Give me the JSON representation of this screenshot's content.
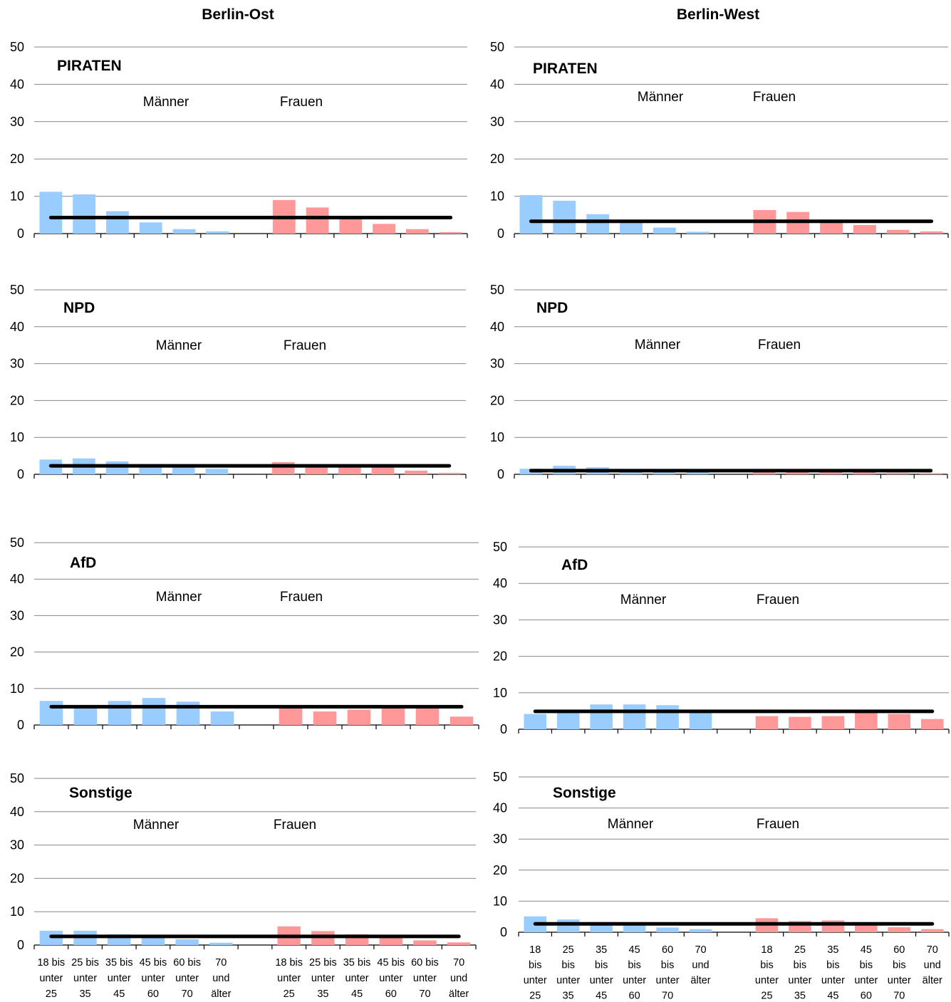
{
  "columns": [
    "Berlin-Ost",
    "Berlin-West"
  ],
  "labels": {
    "men": "Männer",
    "women": "Frauen"
  },
  "colors": {
    "men": "#99ccff",
    "women": "#ff9999",
    "average_line": "#000000"
  },
  "chart_data": [
    {
      "type": "bar",
      "title": "PIRATEN",
      "region": "Berlin-Ost",
      "ylim": [
        0,
        50
      ],
      "yticks": [
        0,
        10,
        20,
        30,
        40,
        50
      ],
      "series": [
        {
          "name": "Männer",
          "values": [
            11.2,
            10.5,
            6.0,
            3.0,
            1.2,
            0.6
          ]
        },
        {
          "name": "Frauen",
          "values": [
            9.0,
            7.0,
            4.0,
            2.6,
            1.2,
            0.4
          ]
        }
      ],
      "average": 4.3
    },
    {
      "type": "bar",
      "title": "PIRATEN",
      "region": "Berlin-West",
      "ylim": [
        0,
        50
      ],
      "yticks": [
        0,
        10,
        20,
        30,
        40,
        50
      ],
      "series": [
        {
          "name": "Männer",
          "values": [
            10.3,
            8.8,
            5.2,
            3.0,
            1.6,
            0.5
          ]
        },
        {
          "name": "Frauen",
          "values": [
            6.3,
            5.8,
            3.5,
            2.3,
            1.0,
            0.6
          ]
        }
      ],
      "average": 3.3
    },
    {
      "type": "bar",
      "title": "NPD",
      "region": "Berlin-Ost",
      "ylim": [
        0,
        50
      ],
      "yticks": [
        0,
        10,
        20,
        30,
        40,
        50
      ],
      "series": [
        {
          "name": "Männer",
          "values": [
            4.0,
            4.3,
            3.5,
            2.8,
            2.0,
            1.5
          ]
        },
        {
          "name": "Frauen",
          "values": [
            3.3,
            2.5,
            2.4,
            2.4,
            1.0,
            0.4
          ]
        }
      ],
      "average": 2.3
    },
    {
      "type": "bar",
      "title": "NPD",
      "region": "Berlin-West",
      "ylim": [
        0,
        50
      ],
      "yticks": [
        0,
        10,
        20,
        30,
        40,
        50
      ],
      "series": [
        {
          "name": "Männer",
          "values": [
            1.5,
            2.3,
            1.9,
            1.2,
            1.0,
            1.0
          ]
        },
        {
          "name": "Frauen",
          "values": [
            0.9,
            0.8,
            0.7,
            0.6,
            0.4,
            0.3
          ]
        }
      ],
      "average": 1.0
    },
    {
      "type": "bar",
      "title": "AfD",
      "region": "Berlin-Ost",
      "ylim": [
        0,
        50
      ],
      "yticks": [
        0,
        10,
        20,
        30,
        40,
        50
      ],
      "series": [
        {
          "name": "Männer",
          "values": [
            6.6,
            5.0,
            6.6,
            7.4,
            6.4,
            3.7
          ]
        },
        {
          "name": "Frauen",
          "values": [
            5.0,
            3.7,
            4.2,
            4.8,
            4.8,
            2.3
          ]
        }
      ],
      "average": 5.0
    },
    {
      "type": "bar",
      "title": "AfD",
      "region": "Berlin-West",
      "ylim": [
        0,
        50
      ],
      "yticks": [
        0,
        10,
        20,
        30,
        40,
        50
      ],
      "series": [
        {
          "name": "Männer",
          "values": [
            4.2,
            4.8,
            6.8,
            6.8,
            6.6,
            5.0
          ]
        },
        {
          "name": "Frauen",
          "values": [
            3.6,
            3.4,
            3.6,
            4.8,
            4.2,
            2.8
          ]
        }
      ],
      "average": 4.9
    },
    {
      "type": "bar",
      "title": "Sonstige",
      "region": "Berlin-Ost",
      "ylim": [
        0,
        50
      ],
      "yticks": [
        0,
        10,
        20,
        30,
        40,
        50
      ],
      "series": [
        {
          "name": "Männer",
          "values": [
            4.3,
            4.3,
            3.2,
            2.6,
            1.7,
            0.7
          ]
        },
        {
          "name": "Frauen",
          "values": [
            5.6,
            4.2,
            3.2,
            2.6,
            1.4,
            0.8
          ]
        }
      ],
      "average": 2.6
    },
    {
      "type": "bar",
      "title": "Sonstige",
      "region": "Berlin-West",
      "ylim": [
        0,
        50
      ],
      "yticks": [
        0,
        10,
        20,
        30,
        40,
        50
      ],
      "series": [
        {
          "name": "Männer",
          "values": [
            5.1,
            4.1,
            3.3,
            2.5,
            1.5,
            1.0
          ]
        },
        {
          "name": "Frauen",
          "values": [
            4.5,
            3.6,
            3.8,
            2.8,
            1.6,
            1.0
          ]
        }
      ],
      "average": 2.7
    }
  ],
  "x_labels": {
    "Berlin-Ost": [
      [
        "18 bis",
        "unter",
        "25"
      ],
      [
        "25 bis",
        "unter",
        "35"
      ],
      [
        "35 bis",
        "unter",
        "45"
      ],
      [
        "45 bis",
        "unter",
        "60"
      ],
      [
        "60 bis",
        "unter",
        "70"
      ],
      [
        "70",
        "und",
        "älter"
      ]
    ],
    "Berlin-West": [
      [
        "18",
        "bis",
        "unter",
        "25"
      ],
      [
        "25",
        "bis",
        "unter",
        "35"
      ],
      [
        "35",
        "bis",
        "unter",
        "45"
      ],
      [
        "45",
        "bis",
        "unter",
        "60"
      ],
      [
        "60",
        "bis",
        "unter",
        "70"
      ],
      [
        "70",
        "und",
        "älter"
      ]
    ]
  }
}
